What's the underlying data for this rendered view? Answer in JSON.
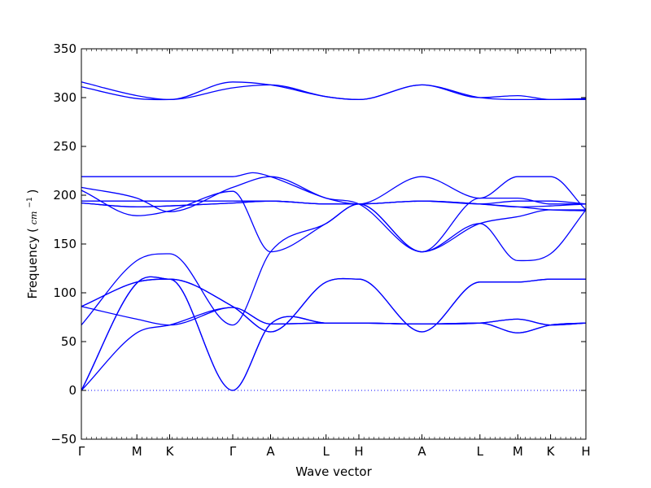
{
  "chart_data": {
    "type": "line",
    "xlabel": "Wave vector",
    "ylabel": "Frequency",
    "ylabel_unit": "cm",
    "ylabel_exponent": "−1",
    "ylim": [
      -50,
      350
    ],
    "xlim": [
      0,
      100
    ],
    "y_ticks": [
      -50,
      0,
      50,
      100,
      150,
      200,
      250,
      300,
      350
    ],
    "y_tick_labels": [
      "−50",
      "0",
      "50",
      "100",
      "150",
      "200",
      "250",
      "300",
      "350"
    ],
    "x_ticks": [
      0,
      11,
      17.5,
      30,
      37.5,
      48.5,
      55,
      67.5,
      79,
      86.5,
      93,
      100
    ],
    "x_tick_labels": [
      "Γ",
      "M",
      "K",
      "Γ",
      "A",
      "L",
      "H",
      "A",
      "L",
      "M",
      "K",
      "H"
    ],
    "line_color": "#0000ff",
    "zero_line": {
      "y": 0,
      "style": "dotted",
      "color": "#0000ff"
    },
    "series": [
      {
        "x": [
          0,
          11,
          17.5,
          30,
          37.5,
          48.5,
          55,
          67.5,
          79,
          86.5,
          93,
          100
        ],
        "values": [
          316,
          302,
          298,
          316,
          313,
          301,
          298,
          313,
          300,
          302,
          298,
          299
        ]
      },
      {
        "x": [
          0,
          11,
          17.5,
          30,
          37.5,
          48.5,
          55,
          67.5,
          79,
          86.5,
          93,
          100
        ],
        "values": [
          311,
          299,
          298,
          310,
          313,
          301,
          298,
          313,
          300,
          298,
          298,
          298
        ]
      },
      {
        "x": [
          0,
          11,
          17.5,
          30,
          34,
          37.5,
          48.5,
          55,
          67.5,
          79,
          86.5,
          93,
          100
        ],
        "values": [
          219,
          219,
          219,
          219,
          223,
          219,
          197,
          191,
          219,
          197,
          219,
          219,
          185
        ]
      },
      {
        "x": [
          0,
          11,
          17.5,
          30,
          37.5,
          48.5,
          55,
          67.5,
          79,
          86.5,
          93,
          100
        ],
        "values": [
          208,
          197,
          183,
          208,
          219,
          197,
          191,
          142,
          197,
          197,
          191,
          191
        ]
      },
      {
        "x": [
          0,
          11,
          17.5,
          30,
          37.5,
          48.5,
          55,
          67.5,
          79,
          86.5,
          93,
          100
        ],
        "values": [
          205,
          179,
          184,
          204,
          142,
          171,
          191,
          142,
          171,
          133,
          140,
          185
        ]
      },
      {
        "x": [
          0,
          11,
          17.5,
          30,
          37.5,
          48.5,
          55,
          67.5,
          79,
          86.5,
          93,
          100
        ],
        "values": [
          194,
          194,
          194,
          194,
          194,
          191,
          191,
          194,
          191,
          194,
          194,
          191
        ]
      },
      {
        "x": [
          0,
          11,
          17.5,
          30,
          37.5,
          48.5,
          55,
          67.5,
          79,
          86.5,
          93,
          100
        ],
        "values": [
          192,
          188,
          189,
          192,
          194,
          191,
          191,
          194,
          191,
          188,
          189,
          191
        ]
      },
      {
        "x": [
          0,
          11,
          17.5,
          30,
          37.5,
          48.5,
          55,
          67.5,
          79,
          86.5,
          93,
          100
        ],
        "values": [
          192,
          188,
          189,
          192,
          194,
          191,
          191,
          194,
          191,
          188,
          185,
          184
        ]
      },
      {
        "x": [
          0,
          11,
          17.5,
          30,
          37.5,
          48.5,
          55,
          67.5,
          79,
          86.5,
          93,
          100
        ],
        "values": [
          86,
          111,
          114,
          86,
          60,
          111,
          114,
          60,
          111,
          111,
          114,
          114
        ]
      },
      {
        "x": [
          0,
          11,
          17.5,
          30,
          37.5,
          48.5,
          55,
          67.5,
          79,
          86.5,
          93,
          100
        ],
        "values": [
          86,
          111,
          114,
          86,
          60,
          111,
          114,
          60,
          111,
          111,
          114,
          114
        ]
      },
      {
        "x": [
          0,
          11,
          17.5,
          30,
          37.5,
          48.5,
          55,
          67.5,
          79,
          86.5,
          93,
          100
        ],
        "values": [
          0,
          110,
          114,
          0,
          68,
          69,
          69,
          68,
          69,
          73,
          67,
          69
        ]
      },
      {
        "x": [
          0,
          11,
          17.5,
          30,
          37.5,
          48.5,
          55,
          67.5,
          79,
          86.5,
          93,
          100
        ],
        "values": [
          0,
          110,
          114,
          0,
          68,
          69,
          69,
          68,
          69,
          59,
          67,
          69
        ]
      },
      {
        "x": [
          0,
          11,
          17.5,
          30,
          37.5,
          48.5,
          55,
          67.5,
          79,
          86.5,
          93,
          100
        ],
        "values": [
          0,
          59,
          67,
          85,
          68,
          69,
          69,
          68,
          69,
          73,
          67,
          69
        ]
      },
      {
        "x": [
          0,
          11,
          17.5,
          30,
          37.5,
          48.5,
          55,
          67.5,
          79,
          86.5,
          93,
          100
        ],
        "values": [
          86,
          73,
          67,
          85,
          68,
          69,
          69,
          68,
          69,
          59,
          67,
          69
        ]
      },
      {
        "x": [
          0,
          11,
          17.5,
          30,
          37.5,
          48.5,
          55,
          67.5,
          79,
          86.5,
          93,
          100
        ],
        "values": [
          67,
          133,
          140,
          67,
          142,
          171,
          191,
          142,
          171,
          178,
          185,
          185
        ]
      }
    ]
  }
}
